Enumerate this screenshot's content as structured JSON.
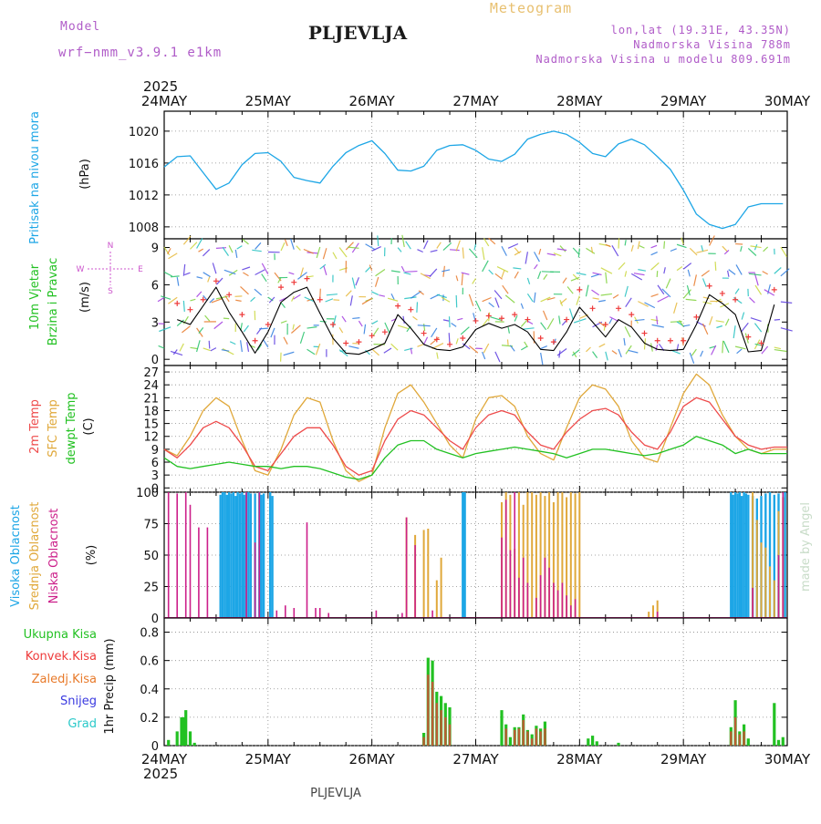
{
  "header": {
    "model_label": "Model",
    "model_name": "wrf−nmm_v3.9.1  e1km",
    "station": "PLJEVLJA",
    "product": "Meteogram",
    "coords": "lon,lat (19.31E, 43.35N)",
    "altitude": "Nadmorska Visina 788m",
    "model_altitude": "Nadmorska Visina u modelu 809.691m",
    "footer": "PLJEVLJA",
    "watermark": "made by Angel"
  },
  "time_axis": {
    "year": "2025",
    "labels": [
      "24MAY",
      "25MAY",
      "26MAY",
      "27MAY",
      "28MAY",
      "29MAY",
      "30MAY"
    ]
  },
  "colors": {
    "pressure": "#1da6e6",
    "wind_label": "#22c122",
    "wind_speed_line": "#000000",
    "gust_marker": "#ee3b3b",
    "temp_2m": "#ee4b4b",
    "temp_sfc": "#e0a83a",
    "dewpoint": "#22c122",
    "cloud_high": "#1da6e6",
    "cloud_mid": "#e0a83a",
    "cloud_low": "#cc1f8a",
    "precip_total": "#22c122",
    "precip_conv": "#ee3b3b",
    "precip_strat": "#e87a2a",
    "precip_snow": "#3a3ae0",
    "precip_hail": "#2ac9c9",
    "compass": "#cc55cc"
  },
  "panels": {
    "pressure": {
      "labels": [
        "Pritisak na nivou mora",
        "(hPa)"
      ],
      "ticks": [
        "1008",
        "1012",
        "1016",
        "1020"
      ]
    },
    "wind": {
      "labels": [
        "10m Vjetar",
        "Brzina i Pravac",
        "(m/s)"
      ],
      "ticks": [
        "0",
        "3",
        "6",
        "9"
      ],
      "compass": {
        "n": "N",
        "s": "S",
        "e": "E",
        "w": "W"
      }
    },
    "temp": {
      "labels": [
        "2m Temp",
        "SFC Temp",
        "dewpt Temp",
        "(C)"
      ],
      "ticks": [
        "0",
        "3",
        "6",
        "9",
        "12",
        "15",
        "18",
        "21",
        "24",
        "27"
      ]
    },
    "cloud": {
      "labels": [
        "Visoka Oblacnost",
        "Srednja Oblacnost",
        "Niska Oblacnost",
        "(%)"
      ],
      "ticks": [
        "0",
        "25",
        "50",
        "75",
        "100"
      ]
    },
    "precip": {
      "legend": [
        "Ukupna Kisa",
        "Konvek.Kisa",
        "Zaledj.Kisa",
        "Snijeg",
        "Grad"
      ],
      "ylabel": "1hr Precip (mm)",
      "ticks": [
        "0",
        "0.2",
        "0.4",
        "0.6",
        "0.8"
      ]
    }
  },
  "chart_data": [
    {
      "type": "line",
      "name": "pressure",
      "ylabel": "Pritisak na nivou mora (hPa)",
      "xlim": [
        0,
        144
      ],
      "ylim": [
        1006.5,
        1022.5
      ],
      "x": [
        0,
        3,
        6,
        9,
        12,
        15,
        18,
        21,
        24,
        27,
        30,
        33,
        36,
        39,
        42,
        45,
        48,
        51,
        54,
        57,
        60,
        63,
        66,
        69,
        72,
        75,
        78,
        81,
        84,
        87,
        90,
        93,
        96,
        99,
        102,
        105,
        108,
        111,
        114,
        117,
        120,
        123,
        126,
        129,
        132,
        135,
        138,
        141,
        143
      ],
      "series": [
        {
          "values": [
            1015.5,
            1016.8,
            1016.9,
            1014.8,
            1012.7,
            1013.5,
            1015.8,
            1017.2,
            1017.3,
            1016.2,
            1014.2,
            1013.8,
            1013.5,
            1015.6,
            1017.3,
            1018.2,
            1018.8,
            1017.2,
            1015.1,
            1015.0,
            1015.6,
            1017.6,
            1018.2,
            1018.3,
            1017.6,
            1016.5,
            1016.2,
            1017.1,
            1019.0,
            1019.6,
            1020.0,
            1019.6,
            1018.6,
            1017.2,
            1016.8,
            1018.4,
            1019.0,
            1018.3,
            1016.8,
            1015.2,
            1012.6,
            1009.6,
            1008.3,
            1007.8,
            1008.3,
            1010.5,
            1010.9,
            1010.9,
            1010.9
          ]
        }
      ]
    },
    {
      "type": "line",
      "name": "wind",
      "ylabel": "10m Vjetar Brzina i Pravac (m/s)",
      "xlim": [
        0,
        144
      ],
      "ylim": [
        -0.5,
        9.7
      ],
      "x": [
        3,
        6,
        9,
        12,
        15,
        18,
        21,
        24,
        27,
        30,
        33,
        36,
        39,
        42,
        45,
        48,
        51,
        54,
        57,
        60,
        63,
        66,
        69,
        72,
        75,
        78,
        81,
        84,
        87,
        90,
        93,
        96,
        99,
        102,
        105,
        108,
        111,
        114,
        117,
        120,
        123,
        126,
        129,
        132,
        135,
        138,
        141
      ],
      "series": [
        {
          "name": "speed",
          "values": [
            3.2,
            2.8,
            4.3,
            5.8,
            3.8,
            2.2,
            0.5,
            2.2,
            4.6,
            5.4,
            5.8,
            3.7,
            1.7,
            0.5,
            0.4,
            0.8,
            1.3,
            3.6,
            2.5,
            1.2,
            0.8,
            0.7,
            1.0,
            2.4,
            2.9,
            2.5,
            2.8,
            2.2,
            0.8,
            0.7,
            2.2,
            4.2,
            3.0,
            1.8,
            3.2,
            2.6,
            1.3,
            0.8,
            0.7,
            0.8,
            2.8,
            5.2,
            4.5,
            3.6,
            0.6,
            0.7,
            4.4
          ]
        },
        {
          "name": "gust",
          "values": [
            4.5,
            4.0,
            4.8,
            6.3,
            5.2,
            3.6,
            1.5,
            2.8,
            5.8,
            6.2,
            6.5,
            4.8,
            2.8,
            1.3,
            1.4,
            1.9,
            2.2,
            4.3,
            4.0,
            2.1,
            1.6,
            1.2,
            1.7,
            3.1,
            3.5,
            3.3,
            3.6,
            3.2,
            1.7,
            1.4,
            3.2,
            5.6,
            4.1,
            2.8,
            4.1,
            3.6,
            2.1,
            1.5,
            1.5,
            1.5,
            3.4,
            5.9,
            5.3,
            4.8,
            1.8,
            1.3,
            5.6
          ]
        }
      ]
    },
    {
      "type": "line",
      "name": "temperature",
      "ylabel": "Temp (C)",
      "xlim": [
        0,
        144
      ],
      "ylim": [
        -1,
        28.5
      ],
      "x": [
        0,
        3,
        6,
        9,
        12,
        15,
        18,
        21,
        24,
        27,
        30,
        33,
        36,
        39,
        42,
        45,
        48,
        51,
        54,
        57,
        60,
        63,
        66,
        69,
        72,
        75,
        78,
        81,
        84,
        87,
        90,
        93,
        96,
        99,
        102,
        105,
        108,
        111,
        114,
        117,
        120,
        123,
        126,
        129,
        132,
        135,
        138,
        141,
        144
      ],
      "series": [
        {
          "name": "2m Temp",
          "values": [
            9,
            7,
            10,
            14,
            15.5,
            14,
            10,
            5,
            4,
            8,
            12,
            14,
            14,
            10,
            5,
            3,
            4,
            11,
            16,
            18,
            17,
            14,
            11,
            9,
            14,
            17,
            18,
            17,
            13,
            10,
            9,
            13,
            16,
            18,
            18.5,
            17,
            13,
            10,
            9,
            13,
            19,
            21,
            20,
            16,
            12,
            10,
            9,
            9.5,
            9.5
          ]
        },
        {
          "name": "SFC Temp",
          "values": [
            9,
            7.5,
            12,
            18,
            21,
            19,
            11,
            4,
            3,
            9,
            17,
            21,
            20,
            11,
            4,
            1.5,
            3,
            14,
            22,
            24,
            20,
            15,
            10,
            7,
            16,
            21,
            21.5,
            19,
            12,
            8,
            6.5,
            14,
            21,
            24,
            23,
            19,
            11,
            7,
            6,
            14,
            22,
            26.5,
            24,
            17,
            12,
            9,
            8,
            9,
            9
          ]
        },
        {
          "name": "dewpt Temp",
          "values": [
            7,
            5,
            4.5,
            5,
            5.5,
            6,
            5.5,
            5,
            5,
            4.5,
            5,
            5,
            4.5,
            3.5,
            2.5,
            2,
            3,
            7,
            10,
            11,
            11,
            9,
            8,
            7,
            8,
            8.5,
            9,
            9.5,
            9,
            8.5,
            8,
            7,
            8,
            9,
            9,
            8.5,
            8,
            7.5,
            8,
            9,
            10,
            12,
            11,
            10,
            8,
            9,
            8,
            8,
            8
          ]
        }
      ]
    },
    {
      "type": "bar",
      "name": "cloud",
      "ylabel": "Oblacnost (%)",
      "xlim": [
        0,
        144
      ],
      "ylim": [
        0,
        100
      ],
      "series": [
        {
          "name": "high",
          "x": [
            13,
            13.5,
            14,
            14.5,
            15,
            15.5,
            16,
            16.5,
            17,
            17.5,
            18,
            18.5,
            19,
            19.5,
            20,
            21,
            22,
            22.5,
            23,
            24.5,
            25,
            69,
            69.5,
            131,
            131.5,
            132,
            132.5,
            133,
            133.5,
            134,
            134.5,
            135,
            136,
            137,
            138,
            139,
            140,
            141,
            142,
            143.5
          ],
          "values": [
            98,
            100,
            100,
            98,
            100,
            99,
            100,
            97,
            100,
            99,
            100,
            98,
            100,
            100,
            99,
            99,
            100,
            98,
            99,
            100,
            97,
            100,
            100,
            100,
            98,
            100,
            99,
            100,
            97,
            100,
            99,
            98,
            97,
            95,
            97,
            99,
            100,
            98,
            99,
            100
          ]
        },
        {
          "name": "mid",
          "x": [
            56,
            58,
            60,
            61,
            63,
            64,
            65,
            78,
            79,
            80,
            81,
            82,
            83,
            84,
            85,
            86,
            87,
            88,
            89,
            90,
            91,
            92,
            93,
            94,
            95,
            96,
            112,
            113,
            114,
            136,
            137,
            138,
            139,
            140,
            141,
            142,
            143
          ],
          "values": [
            80,
            66,
            70,
            71,
            30,
            48,
            0,
            92,
            100,
            98,
            55,
            100,
            90,
            100,
            100,
            98,
            100,
            97,
            100,
            92,
            100,
            100,
            96,
            100,
            99,
            100,
            5,
            10,
            14,
            100,
            78,
            60,
            56,
            41,
            30,
            85,
            96
          ]
        },
        {
          "name": "low",
          "x": [
            1,
            3,
            5,
            6,
            8,
            10,
            12,
            19,
            21,
            22,
            24,
            26,
            28,
            30,
            33,
            35,
            36,
            38,
            40,
            41,
            42,
            43,
            45,
            46,
            48,
            49,
            55,
            56,
            58,
            59,
            60,
            62,
            64,
            65,
            66,
            68,
            77,
            78,
            79,
            80,
            81,
            82,
            83,
            84,
            86,
            87,
            88,
            89,
            90,
            91,
            92,
            93,
            94,
            95,
            104,
            106,
            108,
            110,
            112,
            113,
            114,
            126,
            128,
            130,
            132,
            134,
            136,
            138,
            140,
            142,
            143
          ],
          "values": [
            100,
            99,
            100,
            90,
            72,
            72,
            0,
            100,
            60,
            100,
            0,
            6,
            10,
            8,
            76,
            8,
            8,
            4,
            0,
            0,
            0,
            0,
            0,
            0,
            0,
            6,
            4,
            80,
            58,
            0,
            0,
            6,
            0,
            0,
            0,
            0,
            0,
            64,
            94,
            54,
            100,
            32,
            48,
            28,
            16,
            34,
            48,
            40,
            28,
            22,
            28,
            18,
            10,
            15,
            0,
            0,
            0,
            0,
            0,
            0,
            5,
            0,
            0,
            0,
            0,
            0,
            24,
            0,
            0,
            50,
            100
          ]
        }
      ]
    },
    {
      "type": "bar",
      "name": "precipitation",
      "ylabel": "1hr Precip (mm)",
      "xlim": [
        0,
        144
      ],
      "ylim": [
        0,
        0.9
      ],
      "series": [
        {
          "name": "Ukupna Kisa",
          "x": [
            1,
            3,
            4,
            4.5,
            5,
            6,
            7,
            60,
            61,
            62,
            63,
            64,
            65,
            66,
            78,
            79,
            80,
            81,
            82,
            83,
            84,
            85,
            86,
            87,
            88,
            98,
            99,
            100,
            105,
            131,
            132,
            133,
            134,
            135,
            141,
            142,
            143
          ],
          "values": [
            0.04,
            0.1,
            0.2,
            0.2,
            0.25,
            0.1,
            0.02,
            0.09,
            0.62,
            0.6,
            0.38,
            0.35,
            0.3,
            0.27,
            0.25,
            0.15,
            0.06,
            0.13,
            0.13,
            0.22,
            0.11,
            0.08,
            0.14,
            0.12,
            0.17,
            0.05,
            0.07,
            0.03,
            0.02,
            0.13,
            0.32,
            0.1,
            0.15,
            0.05,
            0.3,
            0.04,
            0.06
          ]
        },
        {
          "name": "Konvek.Kisa",
          "x": [
            60,
            61,
            62,
            63,
            64,
            65,
            66,
            79,
            81,
            82,
            83,
            84,
            85,
            86,
            87,
            88,
            131,
            132,
            133,
            134
          ],
          "values": [
            0.06,
            0.5,
            0.45,
            0.3,
            0.25,
            0.2,
            0.15,
            0.12,
            0.11,
            0.12,
            0.18,
            0.1,
            0.05,
            0.12,
            0.1,
            0.12,
            0.1,
            0.2,
            0.08,
            0.1
          ]
        }
      ]
    }
  ]
}
